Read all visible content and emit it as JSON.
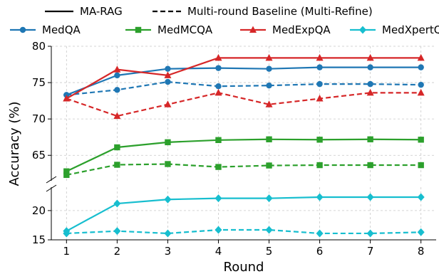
{
  "chart_data": {
    "type": "line",
    "title": "",
    "xlabel": "Round",
    "ylabel": "Accuracy (%)",
    "x": [
      1,
      2,
      3,
      4,
      5,
      6,
      7,
      8
    ],
    "y_panels": [
      {
        "name": "upper",
        "ylim": [
          61.5,
          80
        ],
        "yticks": [
          65,
          70,
          75,
          80
        ]
      },
      {
        "name": "lower",
        "ylim": [
          15,
          24
        ],
        "yticks": [
          15,
          20
        ]
      }
    ],
    "grid": true,
    "broken_axis": true,
    "legend_position": "top",
    "style_legend": [
      {
        "label": "MA-RAG",
        "dash": "solid"
      },
      {
        "label": "Multi-round Baseline (Multi-Refine)",
        "dash": "dashed"
      }
    ],
    "series": [
      {
        "name": "MedQA",
        "method": "MA-RAG",
        "color": "#1f77b4",
        "marker": "circle",
        "dash": "solid",
        "show_in_legend": true,
        "values": [
          73.3,
          76.0,
          76.9,
          77.0,
          76.9,
          77.1,
          77.1,
          77.1
        ]
      },
      {
        "name": "MedQA",
        "method": "Multi-round Baseline (Multi-Refine)",
        "color": "#1f77b4",
        "marker": "circle",
        "dash": "dashed",
        "show_in_legend": false,
        "values": [
          73.3,
          74.0,
          75.1,
          74.5,
          74.6,
          74.8,
          74.8,
          74.7
        ]
      },
      {
        "name": "MedMCQA",
        "method": "MA-RAG",
        "color": "#2ca02c",
        "marker": "square",
        "dash": "solid",
        "show_in_legend": true,
        "values": [
          62.8,
          66.1,
          66.8,
          67.1,
          67.2,
          67.15,
          67.2,
          67.15
        ]
      },
      {
        "name": "MedMCQA",
        "method": "Multi-round Baseline (Multi-Refine)",
        "color": "#2ca02c",
        "marker": "square",
        "dash": "dashed",
        "show_in_legend": false,
        "values": [
          62.3,
          63.7,
          63.8,
          63.4,
          63.6,
          63.65,
          63.65,
          63.65
        ]
      },
      {
        "name": "MedExpQA",
        "method": "MA-RAG",
        "color": "#d62728",
        "marker": "triangle",
        "dash": "solid",
        "show_in_legend": true,
        "values": [
          72.8,
          76.8,
          76.0,
          78.4,
          78.4,
          78.4,
          78.4,
          78.4
        ]
      },
      {
        "name": "MedExpQA",
        "method": "Multi-round Baseline (Multi-Refine)",
        "color": "#d62728",
        "marker": "triangle",
        "dash": "dashed",
        "show_in_legend": false,
        "values": [
          72.8,
          70.4,
          72.0,
          73.6,
          72.0,
          72.8,
          73.6,
          73.6
        ]
      },
      {
        "name": "MedXpertQA",
        "method": "MA-RAG",
        "color": "#17becf",
        "marker": "diamond",
        "dash": "solid",
        "show_in_legend": true,
        "values": [
          16.5,
          21.2,
          21.9,
          22.1,
          22.1,
          22.3,
          22.3,
          22.3
        ]
      },
      {
        "name": "MedXpertQA",
        "method": "Multi-round Baseline (Multi-Refine)",
        "color": "#17becf",
        "marker": "diamond",
        "dash": "dashed",
        "show_in_legend": false,
        "values": [
          16.1,
          16.5,
          16.1,
          16.7,
          16.7,
          16.1,
          16.1,
          16.3
        ]
      }
    ]
  }
}
